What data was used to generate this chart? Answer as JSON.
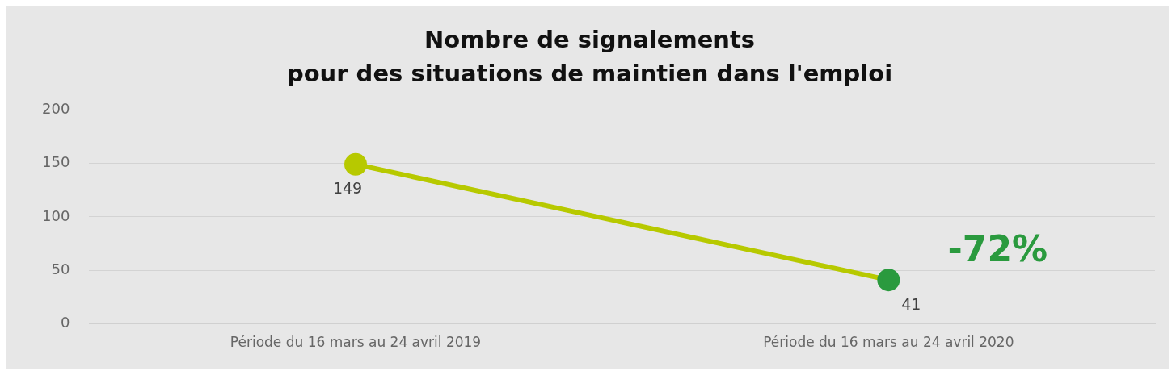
{
  "chart_data": {
    "type": "line",
    "title": "Nombre de signalements\npour des situations de maintien dans l'emploi",
    "categories": [
      "Période du 16 mars au 24 avril 2019",
      "Période du 16 mars au 24 avril 2020"
    ],
    "series": [
      {
        "values": [
          149,
          41
        ],
        "colors": [
          "#b7c900",
          "#2a9a3e"
        ]
      }
    ],
    "ylim": [
      0,
      200
    ],
    "yticks": [
      0,
      50,
      100,
      150,
      200
    ],
    "grid": "y",
    "legend": false,
    "marker": "circle",
    "line_style": "solid",
    "data_labels": true,
    "annotations": [
      "-72%"
    ]
  }
}
